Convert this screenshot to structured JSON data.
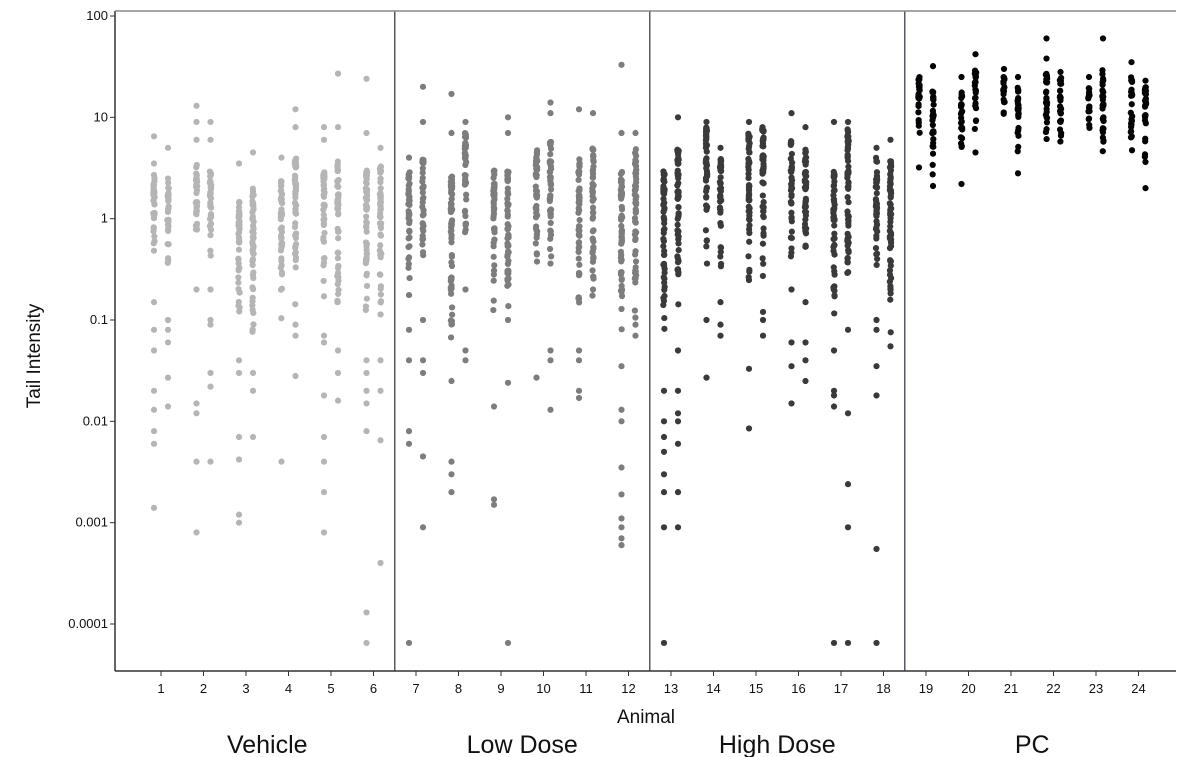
{
  "chart_data": {
    "type": "scatter",
    "xlabel": "Animal",
    "ylabel": "Tail Intensity",
    "y_scale": "log",
    "ylim": [
      5e-05,
      100
    ],
    "y_ticks": [
      {
        "value": 100,
        "label": "100"
      },
      {
        "value": 10,
        "label": "10"
      },
      {
        "value": 1,
        "label": "1"
      },
      {
        "value": 0.1,
        "label": "0.1"
      },
      {
        "value": 0.01,
        "label": "0.01"
      },
      {
        "value": 0.001,
        "label": "0.001"
      },
      {
        "value": 0.0001,
        "label": "0.0001"
      }
    ],
    "x_ticks": [
      "1",
      "2",
      "3",
      "4",
      "5",
      "6",
      "7",
      "8",
      "9",
      "10",
      "11",
      "12",
      "13",
      "14",
      "15",
      "16",
      "17",
      "18",
      "19",
      "20",
      "21",
      "22",
      "23",
      "24"
    ],
    "grid": false,
    "legend": "none",
    "groups": [
      {
        "label": "Vehicle",
        "animals": [
          1,
          6
        ],
        "color": "#b5b5b5"
      },
      {
        "label": "Low Dose",
        "animals": [
          7,
          12
        ],
        "color": "#7d7d7d"
      },
      {
        "label": "High Dose",
        "animals": [
          13,
          18
        ],
        "color": "#3a3a3a"
      },
      {
        "label": "PC",
        "animals": [
          19,
          24
        ],
        "color": "#050505"
      }
    ],
    "animals": [
      {
        "animal": 1,
        "left": {
          "range": [
            0.2,
            2.8
          ],
          "outliers": [
            6.5,
            3.5,
            0.15,
            0.08,
            0.05,
            0.02,
            0.013,
            0.008,
            0.006,
            0.0014
          ]
        },
        "right": {
          "range": [
            0.3,
            2.5
          ],
          "outliers": [
            5,
            0.1,
            0.08,
            0.06,
            0.027,
            0.014
          ]
        }
      },
      {
        "animal": 2,
        "left": {
          "range": [
            0.4,
            3.5
          ],
          "outliers": [
            13,
            9,
            6,
            0.2,
            0.015,
            0.012,
            0.004,
            0.0008
          ]
        },
        "right": {
          "range": [
            0.3,
            3
          ],
          "outliers": [
            9,
            6,
            0.2,
            0.1,
            0.09,
            0.03,
            0.022,
            0.004
          ]
        }
      },
      {
        "animal": 3,
        "left": {
          "range": [
            0.07,
            1.5
          ],
          "outliers": [
            3.5,
            0.04,
            0.03,
            0.007,
            0.0042,
            0.0012,
            0.001
          ]
        },
        "right": {
          "range": [
            0.05,
            2
          ],
          "outliers": [
            4.5,
            0.03,
            0.02,
            0.007
          ]
        }
      },
      {
        "animal": 4,
        "left": {
          "range": [
            0.08,
            2.5
          ],
          "outliers": [
            4,
            0.004
          ]
        },
        "right": {
          "range": [
            0.1,
            4
          ],
          "outliers": [
            12,
            8,
            0.09,
            0.07,
            0.028
          ]
        }
      },
      {
        "animal": 5,
        "left": {
          "range": [
            0.15,
            3
          ],
          "outliers": [
            8,
            6,
            0.07,
            0.06,
            0.018,
            0.007,
            0.004,
            0.002,
            0.0008
          ]
        },
        "right": {
          "range": [
            0.1,
            4
          ],
          "outliers": [
            27,
            8,
            0.05,
            0.03,
            0.016
          ]
        }
      },
      {
        "animal": 6,
        "left": {
          "range": [
            0.08,
            3
          ],
          "outliers": [
            24,
            7,
            0.04,
            0.03,
            0.02,
            0.015,
            0.008,
            0.00013,
            6.5e-05
          ]
        },
        "right": {
          "range": [
            0.08,
            3.5
          ],
          "outliers": [
            5,
            0.04,
            0.02,
            0.0065,
            0.0004
          ]
        }
      },
      {
        "animal": 7,
        "left": {
          "range": [
            0.15,
            3
          ],
          "outliers": [
            4,
            0.08,
            0.04,
            0.008,
            0.006,
            6.5e-05
          ]
        },
        "right": {
          "range": [
            0.3,
            4
          ],
          "outliers": [
            20,
            9,
            0.1,
            0.04,
            0.03,
            0.0045,
            0.0009
          ]
        }
      },
      {
        "animal": 8,
        "left": {
          "range": [
            0.04,
            3
          ],
          "outliers": [
            17,
            7,
            0.025,
            0.004,
            0.003,
            0.002
          ]
        },
        "right": {
          "range": [
            0.3,
            7
          ],
          "outliers": [
            9,
            0.2,
            0.05,
            0.04
          ]
        }
      },
      {
        "animal": 9,
        "left": {
          "range": [
            0.1,
            3
          ],
          "outliers": [
            0.014,
            0.0017,
            0.0015
          ]
        },
        "right": {
          "range": [
            0.06,
            3
          ],
          "outliers": [
            10,
            7,
            0.1,
            0.024,
            6.5e-05
          ]
        }
      },
      {
        "animal": 10,
        "left": {
          "range": [
            0.2,
            5
          ],
          "outliers": [
            0.027
          ]
        },
        "right": {
          "range": [
            0.2,
            6
          ],
          "outliers": [
            14,
            11,
            0.05,
            0.04,
            0.013
          ]
        }
      },
      {
        "animal": 11,
        "left": {
          "range": [
            0.1,
            4
          ],
          "outliers": [
            12,
            0.05,
            0.04,
            0.02,
            0.017
          ]
        },
        "right": {
          "range": [
            0.15,
            5
          ],
          "outliers": [
            11,
            0.2
          ]
        }
      },
      {
        "animal": 12,
        "left": {
          "range": [
            0.05,
            3
          ],
          "outliers": [
            33,
            7,
            0.035,
            0.013,
            0.01,
            0.0035,
            0.0019,
            0.0011,
            0.0009,
            0.0007,
            0.0006
          ]
        },
        "right": {
          "range": [
            0.1,
            5
          ],
          "outliers": [
            7,
            0.09,
            0.07
          ]
        }
      },
      {
        "animal": 13,
        "left": {
          "range": [
            0.05,
            3
          ],
          "outliers": [
            0.02,
            0.01,
            0.007,
            0.005,
            0.003,
            0.002,
            0.0009,
            6.5e-05
          ]
        },
        "right": {
          "range": [
            0.1,
            5
          ],
          "outliers": [
            10,
            0.05,
            0.02,
            0.012,
            0.01,
            0.006,
            0.002,
            0.0009
          ]
        }
      },
      {
        "animal": 14,
        "left": {
          "range": [
            0.2,
            8
          ],
          "outliers": [
            9,
            0.1,
            0.027
          ]
        },
        "right": {
          "range": [
            0.2,
            4
          ],
          "outliers": [
            5,
            0.15,
            0.09,
            0.07
          ]
        }
      },
      {
        "animal": 15,
        "left": {
          "range": [
            0.15,
            7
          ],
          "outliers": [
            9,
            0.033,
            0.0085
          ]
        },
        "right": {
          "range": [
            0.2,
            8
          ],
          "outliers": [
            0.12,
            0.1,
            0.07
          ]
        }
      },
      {
        "animal": 16,
        "left": {
          "range": [
            0.3,
            6
          ],
          "outliers": [
            11,
            0.2,
            0.06,
            0.035,
            0.015
          ]
        },
        "right": {
          "range": [
            0.2,
            5
          ],
          "outliers": [
            8,
            0.15,
            0.06,
            0.04,
            0.025
          ]
        }
      },
      {
        "animal": 17,
        "left": {
          "range": [
            0.1,
            3
          ],
          "outliers": [
            9,
            0.05,
            0.02,
            0.018,
            0.014,
            6.5e-05
          ]
        },
        "right": {
          "range": [
            0.1,
            8
          ],
          "outliers": [
            9,
            0.08,
            0.012,
            0.0024,
            0.0009,
            6.5e-05
          ]
        }
      },
      {
        "animal": 18,
        "left": {
          "range": [
            0.2,
            4
          ],
          "outliers": [
            5,
            0.1,
            0.08,
            0.035,
            0.018,
            0.00055,
            6.5e-05
          ]
        },
        "right": {
          "range": [
            0.06,
            4
          ],
          "outliers": [
            6,
            0.055
          ]
        }
      },
      {
        "animal": 19,
        "left": {
          "range": [
            4,
            25
          ],
          "outliers": [
            3.2
          ]
        },
        "right": {
          "range": [
            2.5,
            18
          ],
          "outliers": [
            32,
            2.1
          ]
        }
      },
      {
        "animal": 20,
        "left": {
          "range": [
            3.5,
            18
          ],
          "outliers": [
            25,
            2.2
          ]
        },
        "right": {
          "range": [
            5,
            30
          ],
          "outliers": [
            42,
            4.5
          ]
        }
      },
      {
        "animal": 21,
        "left": {
          "range": [
            8,
            25
          ],
          "outliers": [
            30
          ]
        },
        "right": {
          "range": [
            3.5,
            20
          ],
          "outliers": [
            25,
            2.8
          ]
        }
      },
      {
        "animal": 22,
        "left": {
          "range": [
            5,
            28
          ],
          "outliers": [
            60,
            38
          ]
        },
        "right": {
          "range": [
            4,
            25
          ],
          "outliers": [
            28
          ]
        }
      },
      {
        "animal": 23,
        "left": {
          "range": [
            6,
            20
          ],
          "outliers": [
            25
          ]
        },
        "right": {
          "range": [
            3.5,
            30
          ],
          "outliers": [
            60
          ]
        }
      },
      {
        "animal": 24,
        "left": {
          "range": [
            4,
            25
          ],
          "outliers": [
            35
          ]
        },
        "right": {
          "range": [
            3,
            20
          ],
          "outliers": [
            23,
            2
          ]
        }
      }
    ]
  }
}
